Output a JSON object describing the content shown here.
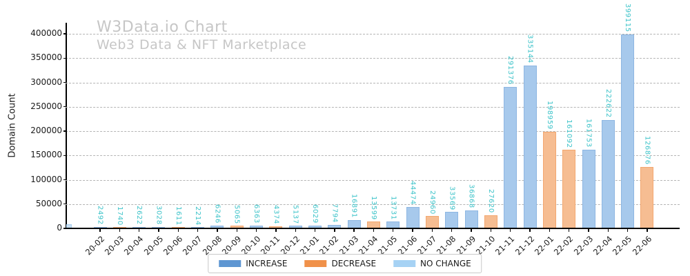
{
  "header": {
    "title": "W3Data.io Chart",
    "subtitle": "Web3 Data & NFT Marketplace"
  },
  "chart_data": {
    "type": "bar",
    "title": "W3Data.io Chart",
    "subtitle": "Web3 Data & NFT Marketplace",
    "xlabel": "",
    "ylabel": "Domain Count",
    "categories": [
      "20-02",
      "20-03",
      "20-04",
      "20-05",
      "20-06",
      "20-07",
      "20-08",
      "20-09",
      "20-10",
      "20-11",
      "20-12",
      "21-01",
      "21-02",
      "21-03",
      "21-04",
      "21-05",
      "21-06",
      "21-07",
      "21-08",
      "21-09",
      "21-10",
      "21-11",
      "21-12",
      "22-01",
      "22-02",
      "22-03",
      "22-04",
      "22-05",
      "22-06"
    ],
    "values": [
      2492,
      1740,
      2622,
      3028,
      1611,
      2214,
      6246,
      5065,
      6363,
      4374,
      5137,
      6029,
      7794,
      16891,
      13599,
      13731,
      44474,
      24960,
      33569,
      36868,
      27620,
      291376,
      335144,
      198959,
      161092,
      161753,
      222622,
      399115,
      126876
    ],
    "bar_kinds": [
      "increase",
      "decrease",
      "increase",
      "increase",
      "decrease",
      "increase",
      "increase",
      "decrease",
      "increase",
      "decrease",
      "increase",
      "increase",
      "increase",
      "increase",
      "decrease",
      "increase",
      "increase",
      "decrease",
      "increase",
      "increase",
      "decrease",
      "increase",
      "increase",
      "decrease",
      "decrease",
      "increase",
      "increase",
      "increase",
      "decrease"
    ],
    "yticks": [
      0,
      50000,
      100000,
      150000,
      200000,
      250000,
      300000,
      350000,
      400000
    ],
    "ylim": [
      0,
      425000
    ],
    "grid": "horizontal-dashed",
    "legend": {
      "position": "bottom-center",
      "entries": [
        {
          "label": "INCREASE",
          "kind": "increase"
        },
        {
          "label": "DECREASE",
          "kind": "decrease"
        },
        {
          "label": "NO CHANGE",
          "kind": "no_change"
        }
      ]
    },
    "colors": {
      "increase": "#5e96d2",
      "decrease": "#f0914a",
      "no_change": "#a6d2f4",
      "increase_bar_fill": "#a7c9ec",
      "increase_bar_edge": "#8db6e2",
      "decrease_bar_fill": "#f6bd92",
      "decrease_bar_edge": "#f3a76f",
      "no_change_bar_fill": "#c8dff5",
      "no_change_bar_edge": "#a9d0ef",
      "value_label": "#3cc3c9",
      "title_gray": "#c6c6c6"
    }
  }
}
